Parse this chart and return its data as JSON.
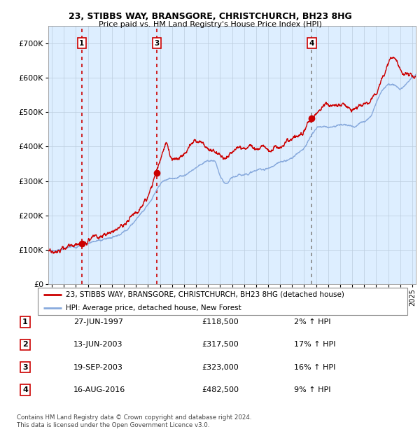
{
  "title1": "23, STIBBS WAY, BRANSGORE, CHRISTCHURCH, BH23 8HG",
  "title2": "Price paid vs. HM Land Registry's House Price Index (HPI)",
  "legend_line1": "23, STIBBS WAY, BRANSGORE, CHRISTCHURCH, BH23 8HG (detached house)",
  "legend_line2": "HPI: Average price, detached house, New Forest",
  "footer": "Contains HM Land Registry data © Crown copyright and database right 2024.\nThis data is licensed under the Open Government Licence v3.0.",
  "transactions": [
    {
      "num": 1,
      "price": 118500,
      "x": 1997.49,
      "vline_color": "#cc0000",
      "vline_style": ":"
    },
    {
      "num": 3,
      "price": 323000,
      "x": 2003.72,
      "vline_color": "#cc0000",
      "vline_style": ":"
    },
    {
      "num": 4,
      "price": 482500,
      "x": 2016.63,
      "vline_color": "#888888",
      "vline_style": ":"
    }
  ],
  "table_rows": [
    [
      "1",
      "27-JUN-1997",
      "£118,500",
      "2% ↑ HPI"
    ],
    [
      "2",
      "13-JUN-2003",
      "£317,500",
      "17% ↑ HPI"
    ],
    [
      "3",
      "19-SEP-2003",
      "£323,000",
      "16% ↑ HPI"
    ],
    [
      "4",
      "16-AUG-2016",
      "£482,500",
      "9% ↑ HPI"
    ]
  ],
  "hpi_color": "#88aadd",
  "price_color": "#cc0000",
  "bg_color": "#ddeeff",
  "grid_color": "#bbccdd",
  "ylim": [
    0,
    750000
  ],
  "xlim_start": 1994.7,
  "xlim_end": 2025.3,
  "yticks": [
    0,
    100000,
    200000,
    300000,
    400000,
    500000,
    600000,
    700000
  ],
  "ytick_labels": [
    "£0",
    "£100K",
    "£200K",
    "£300K",
    "£400K",
    "£500K",
    "£600K",
    "£700K"
  ]
}
